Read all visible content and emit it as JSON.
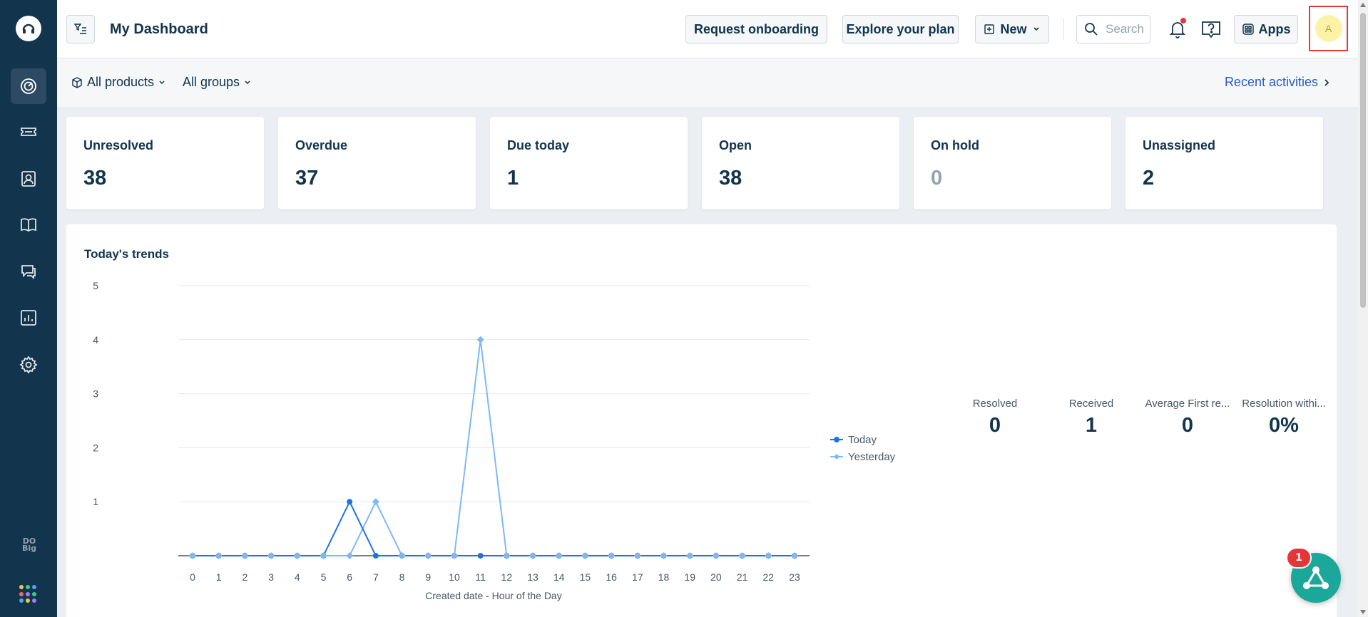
{
  "header": {
    "title": "My Dashboard",
    "request_onboarding": "Request onboarding",
    "explore_plan": "Explore your plan",
    "new_label": "New",
    "search_placeholder": "Search",
    "apps_label": "Apps",
    "avatar_initial": "A"
  },
  "filterbar": {
    "products": "All products",
    "groups": "All groups",
    "recent": "Recent activities"
  },
  "sidebar": {
    "items": [
      {
        "icon": "dashboard-icon",
        "active": true
      },
      {
        "icon": "tickets-icon",
        "active": false
      },
      {
        "icon": "contacts-icon",
        "active": false
      },
      {
        "icon": "knowledge-base-icon",
        "active": false
      },
      {
        "icon": "conversations-icon",
        "active": false
      },
      {
        "icon": "reports-icon",
        "active": false
      },
      {
        "icon": "settings-icon",
        "active": false
      }
    ],
    "bottom_text_line1": "DO",
    "bottom_text_line2": "Big"
  },
  "metrics": [
    {
      "label": "Unresolved",
      "value": "38",
      "muted": false
    },
    {
      "label": "Overdue",
      "value": "37",
      "muted": false
    },
    {
      "label": "Due today",
      "value": "1",
      "muted": false
    },
    {
      "label": "Open",
      "value": "38",
      "muted": false
    },
    {
      "label": "On hold",
      "value": "0",
      "muted": true
    },
    {
      "label": "Unassigned",
      "value": "2",
      "muted": false
    }
  ],
  "trends": {
    "title": "Today's trends",
    "legend": [
      "Today",
      "Yesterday"
    ],
    "stats": [
      {
        "label": "Resolved",
        "value": "0"
      },
      {
        "label": "Received",
        "value": "1"
      },
      {
        "label": "Average First re...",
        "value": "0"
      },
      {
        "label": "Resolution withi...",
        "value": "0%"
      }
    ]
  },
  "widget_badge": "1",
  "colors": {
    "sidebar": "#12344d",
    "today": "#1f73e0",
    "yesterday": "#7fb8f5",
    "link": "#2c5cc5",
    "widget": "#1ba89b",
    "badge": "#e43538"
  },
  "chart_data": {
    "type": "line",
    "xlabel": "Created date - Hour of the Day",
    "ylabel": "",
    "x": [
      0,
      1,
      2,
      3,
      4,
      5,
      6,
      7,
      8,
      9,
      10,
      11,
      12,
      13,
      14,
      15,
      16,
      17,
      18,
      19,
      20,
      21,
      22,
      23
    ],
    "ylim": [
      0,
      5
    ],
    "yticks": [
      1,
      2,
      3,
      4,
      5
    ],
    "series": [
      {
        "name": "Today",
        "values": [
          0,
          0,
          0,
          0,
          0,
          0,
          1,
          0,
          0,
          0,
          0,
          0,
          0,
          0,
          0,
          0,
          0,
          0,
          0,
          0,
          0,
          0,
          0,
          0
        ]
      },
      {
        "name": "Yesterday",
        "values": [
          0,
          0,
          0,
          0,
          0,
          0,
          0,
          1,
          0,
          0,
          0,
          4,
          0,
          0,
          0,
          0,
          0,
          0,
          0,
          0,
          0,
          0,
          0,
          0
        ]
      }
    ],
    "grid": true,
    "legend": "right"
  }
}
